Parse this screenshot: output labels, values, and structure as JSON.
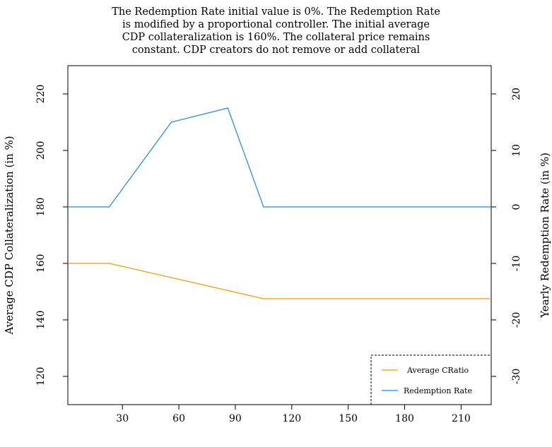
{
  "title_lines": [
    "The Redemption Rate initial value is 0%. The Redemption Rate",
    "is modified by a proportional controller. The initial average",
    "CDP collateralization is 160%. The collateral price remains",
    "constant. CDP creators do not remove or add collateral"
  ],
  "chart_data": {
    "type": "line",
    "title": "The Redemption Rate initial value is 0%. The Redemption Rate is modified by a proportional controller. The initial average CDP collateralization is 160%. The collateral price remains constant. CDP creators do not remove or add collateral",
    "xlabel": "",
    "ylabel_left": "Average CDP Collateralization (in %)",
    "ylabel_right": "Yearly Redemption Rate (in %)",
    "xlim": [
      1,
      226
    ],
    "ylim_left": [
      110,
      230
    ],
    "ylim_right": [
      -35,
      25
    ],
    "x_ticks": [
      30,
      60,
      90,
      120,
      150,
      180,
      210
    ],
    "y_ticks_left": [
      120,
      140,
      160,
      180,
      200,
      220
    ],
    "y_ticks_right": [
      -30,
      -20,
      -10,
      0,
      10,
      20
    ],
    "grid": false,
    "legend_position": "bottom-right",
    "series": [
      {
        "name": "Average CRatio",
        "axis": "left",
        "color": "#e69f00",
        "x": [
          1,
          23,
          105,
          226
        ],
        "y": [
          160,
          160,
          147.5,
          147.5
        ]
      },
      {
        "name": "Redemption Rate",
        "axis": "right",
        "color": "#1f8ad0",
        "x": [
          1,
          23,
          56,
          86,
          105,
          226
        ],
        "y": [
          0,
          0,
          15,
          17.5,
          0,
          0
        ]
      }
    ]
  }
}
